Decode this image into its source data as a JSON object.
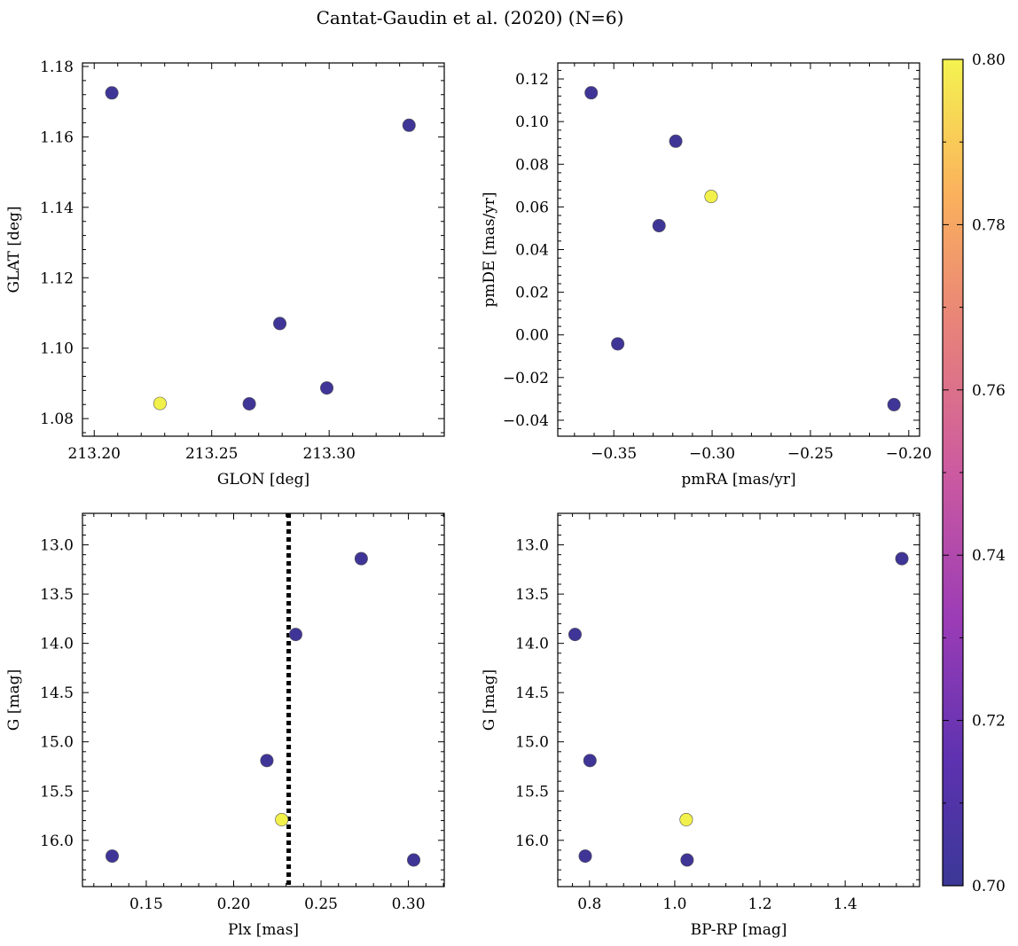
{
  "figure": {
    "title": "Cantat-Gaudin et al. (2020) (N=6)"
  },
  "colors": {
    "low": "#3f3597",
    "high": "#f2f04a",
    "marker_edge": "#555555",
    "reference_line": "#000000"
  },
  "colorbar": {
    "min": 0.7,
    "max": 0.8,
    "ticks": [
      0.7,
      0.72,
      0.74,
      0.76,
      0.78,
      0.8
    ],
    "tick_labels": [
      "0.70",
      "0.72",
      "0.74",
      "0.76",
      "0.78",
      "0.80"
    ]
  },
  "chart_data": [
    {
      "type": "scatter",
      "title": "",
      "xlabel": "GLON [deg]",
      "ylabel": "GLAT [deg]",
      "xlim": [
        213.195,
        213.349
      ],
      "ylim": [
        1.075,
        1.181
      ],
      "xticks": [
        213.2,
        213.25,
        213.3
      ],
      "xtick_labels": [
        "213.20",
        "213.25",
        "213.30"
      ],
      "yticks": [
        1.08,
        1.1,
        1.12,
        1.14,
        1.16,
        1.18
      ],
      "ytick_labels": [
        "1.08",
        "1.10",
        "1.12",
        "1.14",
        "1.16",
        "1.18"
      ],
      "x": [
        213.2075,
        213.334,
        213.279,
        213.299,
        213.266,
        213.228
      ],
      "y": [
        1.1725,
        1.1633,
        1.107,
        1.0887,
        1.0842,
        1.0843
      ],
      "c": [
        0.7,
        0.7,
        0.7,
        0.7,
        0.7,
        0.8
      ]
    },
    {
      "type": "scatter",
      "title": "",
      "xlabel": "pmRA [mas/yr]",
      "ylabel": "pmDE [mas/yr]",
      "xlim": [
        -0.3785,
        -0.1945
      ],
      "ylim": [
        -0.0475,
        0.1275
      ],
      "xticks": [
        -0.35,
        -0.3,
        -0.25,
        -0.2
      ],
      "xtick_labels": [
        "−0.35",
        "−0.30",
        "−0.25",
        "−0.20"
      ],
      "yticks": [
        -0.04,
        -0.02,
        0.0,
        0.02,
        0.04,
        0.06,
        0.08,
        0.1,
        0.12
      ],
      "ytick_labels": [
        "−0.04",
        "−0.02",
        "0.00",
        "0.02",
        "0.04",
        "0.06",
        "0.08",
        "0.10",
        "0.12"
      ],
      "x": [
        -0.3615,
        -0.3185,
        -0.327,
        -0.348,
        -0.2075,
        -0.3005
      ],
      "y": [
        0.1135,
        0.0908,
        0.0512,
        -0.0042,
        -0.0327,
        0.0649
      ],
      "c": [
        0.7,
        0.7,
        0.7,
        0.7,
        0.7,
        0.8
      ]
    },
    {
      "type": "scatter",
      "title": "",
      "xlabel": "Plx [mas]",
      "ylabel": "G [mag]",
      "xlim": [
        0.1135,
        0.3205
      ],
      "ylim": [
        16.47,
        12.68
      ],
      "y_inverted": true,
      "xticks": [
        0.15,
        0.2,
        0.25,
        0.3
      ],
      "xtick_labels": [
        "0.15",
        "0.20",
        "0.25",
        "0.30"
      ],
      "yticks": [
        13.0,
        13.5,
        14.0,
        14.5,
        15.0,
        15.5,
        16.0
      ],
      "ytick_labels": [
        "13.0",
        "13.5",
        "14.0",
        "14.5",
        "15.0",
        "15.5",
        "16.0"
      ],
      "x": [
        0.273,
        0.2355,
        0.219,
        0.1305,
        0.303,
        0.2275
      ],
      "y": [
        13.14,
        13.91,
        15.19,
        16.16,
        16.2,
        15.79
      ],
      "c": [
        0.7,
        0.7,
        0.7,
        0.7,
        0.7,
        0.8
      ],
      "vline": 0.2315
    },
    {
      "type": "scatter",
      "title": "",
      "xlabel": "BP-RP [mag]",
      "ylabel": "G [mag]",
      "xlim": [
        0.7255,
        1.5745
      ],
      "ylim": [
        16.47,
        12.68
      ],
      "y_inverted": true,
      "xticks": [
        0.8,
        1.0,
        1.2,
        1.4
      ],
      "xtick_labels": [
        "0.8",
        "1.0",
        "1.2",
        "1.4"
      ],
      "yticks": [
        13.0,
        13.5,
        14.0,
        14.5,
        15.0,
        15.5,
        16.0
      ],
      "ytick_labels": [
        "13.0",
        "13.5",
        "14.0",
        "14.5",
        "15.0",
        "15.5",
        "16.0"
      ],
      "x": [
        1.533,
        0.766,
        0.801,
        0.79,
        1.029,
        1.027
      ],
      "y": [
        13.14,
        13.91,
        15.19,
        16.16,
        16.2,
        15.79
      ],
      "c": [
        0.7,
        0.7,
        0.7,
        0.7,
        0.7,
        0.8
      ]
    }
  ]
}
